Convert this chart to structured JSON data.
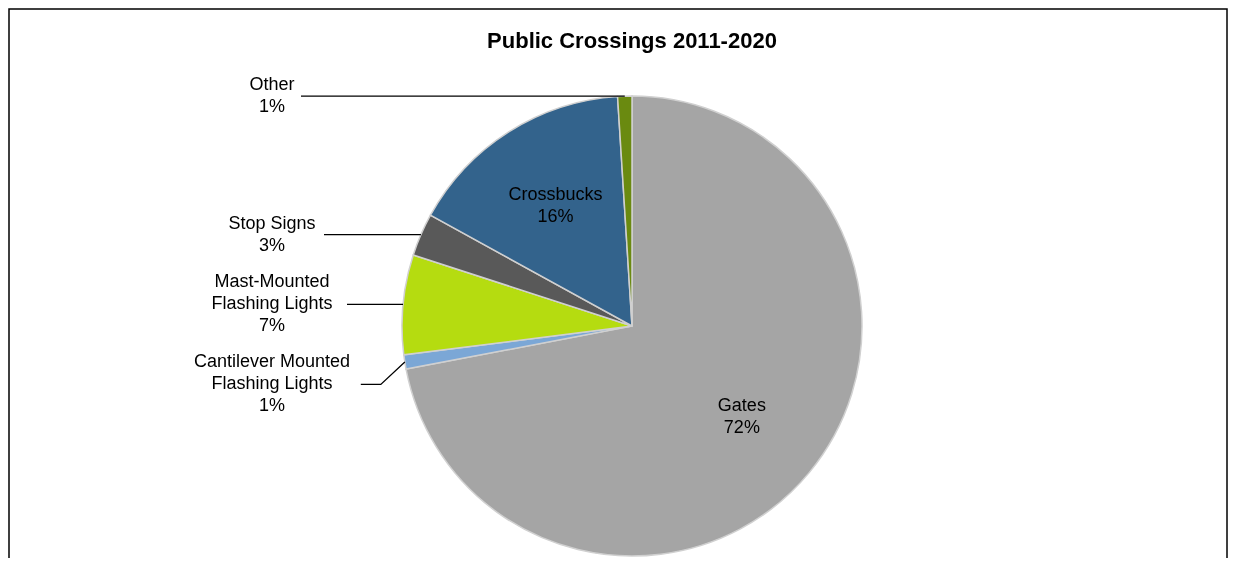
{
  "chart_data": {
    "type": "pie",
    "title": "Public Crossings 2011-2020",
    "categories": [
      "Gates",
      "Cantilever Mounted Flashing Lights",
      "Mast-Mounted Flashing Lights",
      "Stop Signs",
      "Crossbucks",
      "Other"
    ],
    "values": [
      72,
      1,
      7,
      3,
      16,
      1
    ],
    "value_labels": [
      "72%",
      "1%",
      "7%",
      "3%",
      "16%",
      "1%"
    ],
    "colors": [
      "#a5a5a5",
      "#7ba7d6",
      "#b5dc10",
      "#595959",
      "#33638c",
      "#6a8a10"
    ]
  }
}
